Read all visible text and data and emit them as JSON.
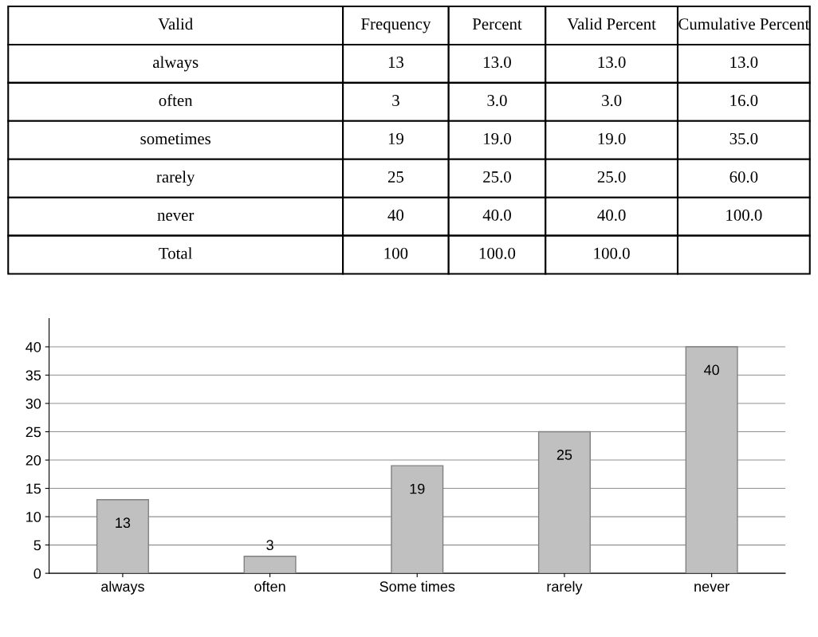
{
  "chart_data": [
    {
      "type": "other",
      "categories": [
        "Valid",
        "Frequency",
        "Percent",
        "Valid Percent",
        "Cumulative Percent"
      ],
      "cell_labels": [
        [
          "always",
          "13",
          "13.0",
          "13.0",
          "13.0"
        ],
        [
          "often",
          "3",
          "3.0",
          "3.0",
          "16.0"
        ],
        [
          "sometimes",
          "19",
          "19.0",
          "19.0",
          "35.0"
        ],
        [
          "rarely",
          "25",
          "25.0",
          "25.0",
          "60.0"
        ],
        [
          "never",
          "40",
          "40.0",
          "40.0",
          "100.0"
        ],
        [
          "Total",
          "100",
          "100.0",
          "100.0",
          null
        ]
      ]
    },
    {
      "type": "bar",
      "categories": [
        "always",
        "often",
        "Some times",
        "rarely",
        "never"
      ],
      "values": [
        13,
        3,
        19,
        25,
        40
      ],
      "color": "#c0c0c0",
      "ylim": [
        0,
        45
      ],
      "yticks": [
        0,
        5,
        10,
        15,
        20,
        25,
        30,
        35,
        40
      ],
      "grid": "y",
      "data_labels": true
    }
  ]
}
